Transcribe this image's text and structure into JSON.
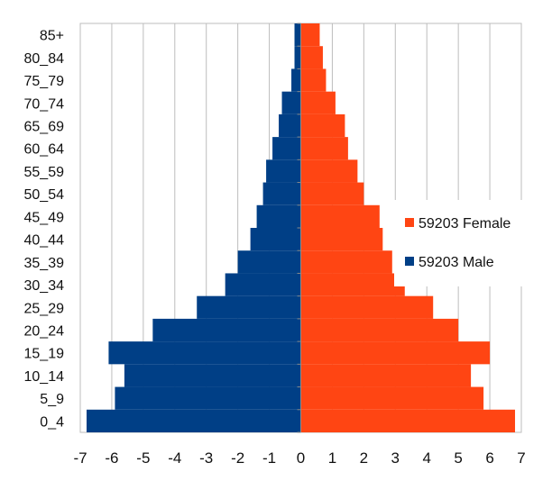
{
  "chart_data": {
    "type": "bar",
    "orientation": "horizontal",
    "title": "",
    "xlabel": "",
    "ylabel": "",
    "xlim": [
      -7,
      7
    ],
    "x_ticks": [
      -7,
      -6,
      -5,
      -4,
      -3,
      -2,
      -1,
      0,
      1,
      2,
      3,
      4,
      5,
      6,
      7
    ],
    "grid": "vertical",
    "legend_position": "right",
    "categories": [
      "0_4",
      "5_9",
      "10_14",
      "15_19",
      "20_24",
      "25_29",
      "30_34",
      "35_39",
      "40_44",
      "45_49",
      "50_54",
      "55_59",
      "60_64",
      "65_69",
      "70_74",
      "75_79",
      "80_84",
      "85+"
    ],
    "series": [
      {
        "name": "59203 Male",
        "color": "#003f86",
        "values": [
          -6.8,
          -5.9,
          -5.6,
          -6.1,
          -4.7,
          -3.3,
          -2.4,
          -2.0,
          -1.6,
          -1.4,
          -1.2,
          -1.1,
          -0.9,
          -0.7,
          -0.6,
          -0.3,
          -0.2,
          -0.2
        ]
      },
      {
        "name": "59203 Female",
        "color": "#ff4513",
        "values": [
          6.8,
          5.8,
          5.4,
          6.0,
          5.0,
          4.2,
          3.3,
          2.9,
          2.6,
          2.5,
          2.0,
          1.8,
          1.5,
          1.4,
          1.1,
          0.8,
          0.7,
          0.6
        ]
      }
    ]
  }
}
